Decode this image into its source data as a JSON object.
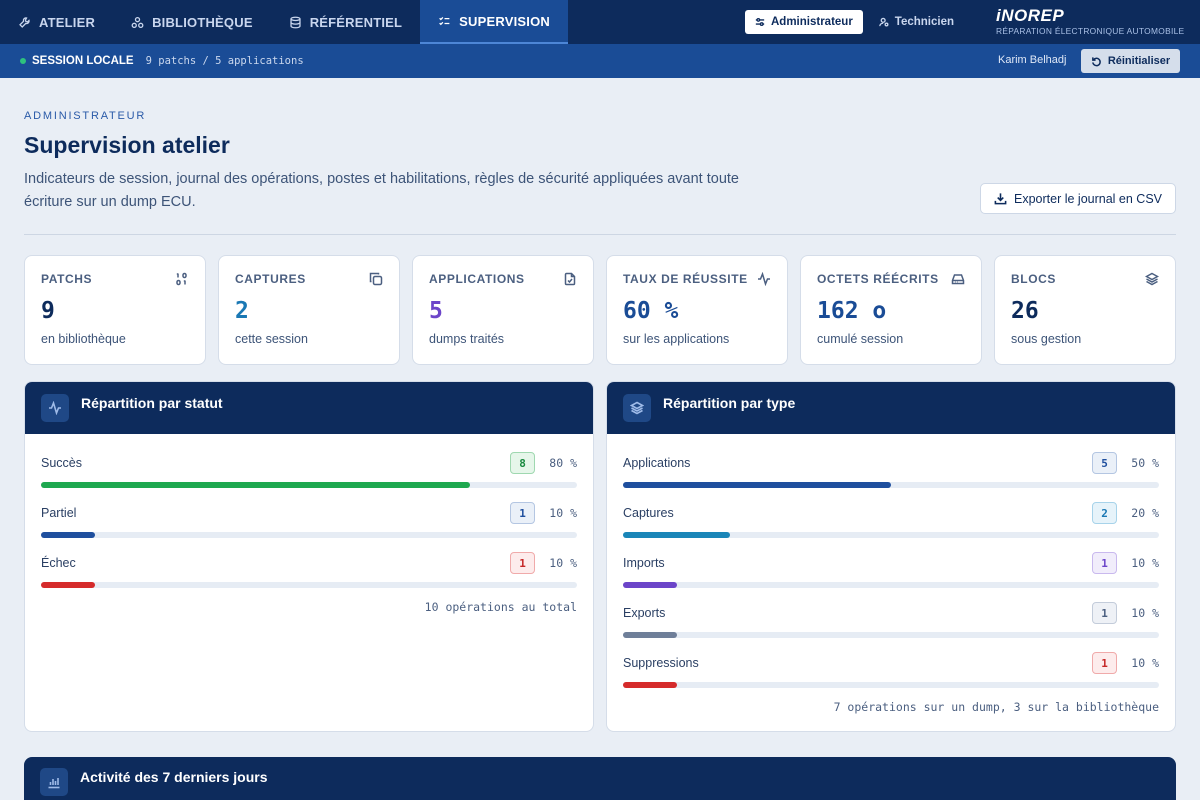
{
  "nav": {
    "tabs": [
      {
        "label": "ATELIER",
        "icon": "wrench-icon"
      },
      {
        "label": "BIBLIOTHÈQUE",
        "icon": "library-icon"
      },
      {
        "label": "RÉFÉRENTIEL",
        "icon": "database-icon"
      },
      {
        "label": "SUPERVISION",
        "icon": "checklist-icon",
        "active": true
      }
    ],
    "roles": {
      "admin": "Administrateur",
      "tech": "Technicien",
      "selected": "admin"
    },
    "brand": {
      "name": "iNOREP",
      "subtitle": "RÉPARATION ÉLECTRONIQUE AUTOMOBILE"
    }
  },
  "session": {
    "label": "SESSION LOCALE",
    "info": "9 patchs / 5 applications",
    "user": "Karim Belhadj",
    "reset_label": "Réinitialiser"
  },
  "header": {
    "eyebrow": "ADMINISTRATEUR",
    "title": "Supervision atelier",
    "description": "Indicateurs de session, journal des opérations, postes et habilitations, règles de sécurité appliquées avant toute écriture sur un dump ECU.",
    "export_label": "Exporter le journal en CSV"
  },
  "kpis": [
    {
      "label": "PATCHS",
      "value": "9",
      "sub": "en bibliothèque",
      "icon": "binary-icon",
      "color": "#0d2b5c"
    },
    {
      "label": "CAPTURES",
      "value": "2",
      "sub": "cette session",
      "icon": "copy-icon",
      "color": "#1a78b4"
    },
    {
      "label": "APPLICATIONS",
      "value": "5",
      "sub": "dumps traités",
      "icon": "file-check-icon",
      "color": "#6c45c9"
    },
    {
      "label": "TAUX DE RÉUSSITE",
      "value": "60 %",
      "sub": "sur les applications",
      "icon": "activity-icon",
      "color": "#1a4c96"
    },
    {
      "label": "OCTETS RÉÉCRITS",
      "value": "162 o",
      "sub": "cumulé session",
      "icon": "drive-icon",
      "color": "#1a4c96"
    },
    {
      "label": "BLOCS",
      "value": "26",
      "sub": "sous gestion",
      "icon": "layers-icon",
      "color": "#0d2b5c"
    }
  ],
  "status_panel": {
    "title": "Répartition par statut",
    "rows": [
      {
        "label": "Succès",
        "count": "8",
        "pct": "80 %",
        "value": 0.8,
        "bar": "#1ea84f",
        "badge_bg": "#e6f6ea",
        "badge_border": "#9fd8b0",
        "badge_text": "#1a8a40"
      },
      {
        "label": "Partiel",
        "count": "1",
        "pct": "10 %",
        "value": 0.1,
        "bar": "#1f4f9e",
        "badge_bg": "#eaf0f8",
        "badge_border": "#b4c6e2",
        "badge_text": "#1f4f9e"
      },
      {
        "label": "Échec",
        "count": "1",
        "pct": "10 %",
        "value": 0.1,
        "bar": "#d52b2b",
        "badge_bg": "#fdecec",
        "badge_border": "#f0aaaa",
        "badge_text": "#c62828"
      }
    ],
    "footer": "10 opérations au total"
  },
  "type_panel": {
    "title": "Répartition par type",
    "rows": [
      {
        "label": "Applications",
        "count": "5",
        "pct": "50 %",
        "value": 0.5,
        "bar": "#1f4f9e",
        "badge_bg": "#eaf0f8",
        "badge_border": "#b4c6e2",
        "badge_text": "#1f4f9e"
      },
      {
        "label": "Captures",
        "count": "2",
        "pct": "20 %",
        "value": 0.2,
        "bar": "#1a86b8",
        "badge_bg": "#e6f3fa",
        "badge_border": "#a7d3ea",
        "badge_text": "#1a78b4"
      },
      {
        "label": "Imports",
        "count": "1",
        "pct": "10 %",
        "value": 0.1,
        "bar": "#6c45c9",
        "badge_bg": "#f1edfb",
        "badge_border": "#c9b9ee",
        "badge_text": "#6c45c9"
      },
      {
        "label": "Exports",
        "count": "1",
        "pct": "10 %",
        "value": 0.1,
        "bar": "#6f7f99",
        "badge_bg": "#eef1f6",
        "badge_border": "#c3ccda",
        "badge_text": "#4b5f80"
      },
      {
        "label": "Suppressions",
        "count": "1",
        "pct": "10 %",
        "value": 0.1,
        "bar": "#d52b2b",
        "badge_bg": "#fdecec",
        "badge_border": "#f0aaaa",
        "badge_text": "#c62828"
      }
    ],
    "footer": "7 opérations sur un dump, 3 sur la bibliothèque"
  },
  "activity_panel": {
    "title": "Activité des 7 derniers jours",
    "icon": "bar-chart-icon"
  }
}
